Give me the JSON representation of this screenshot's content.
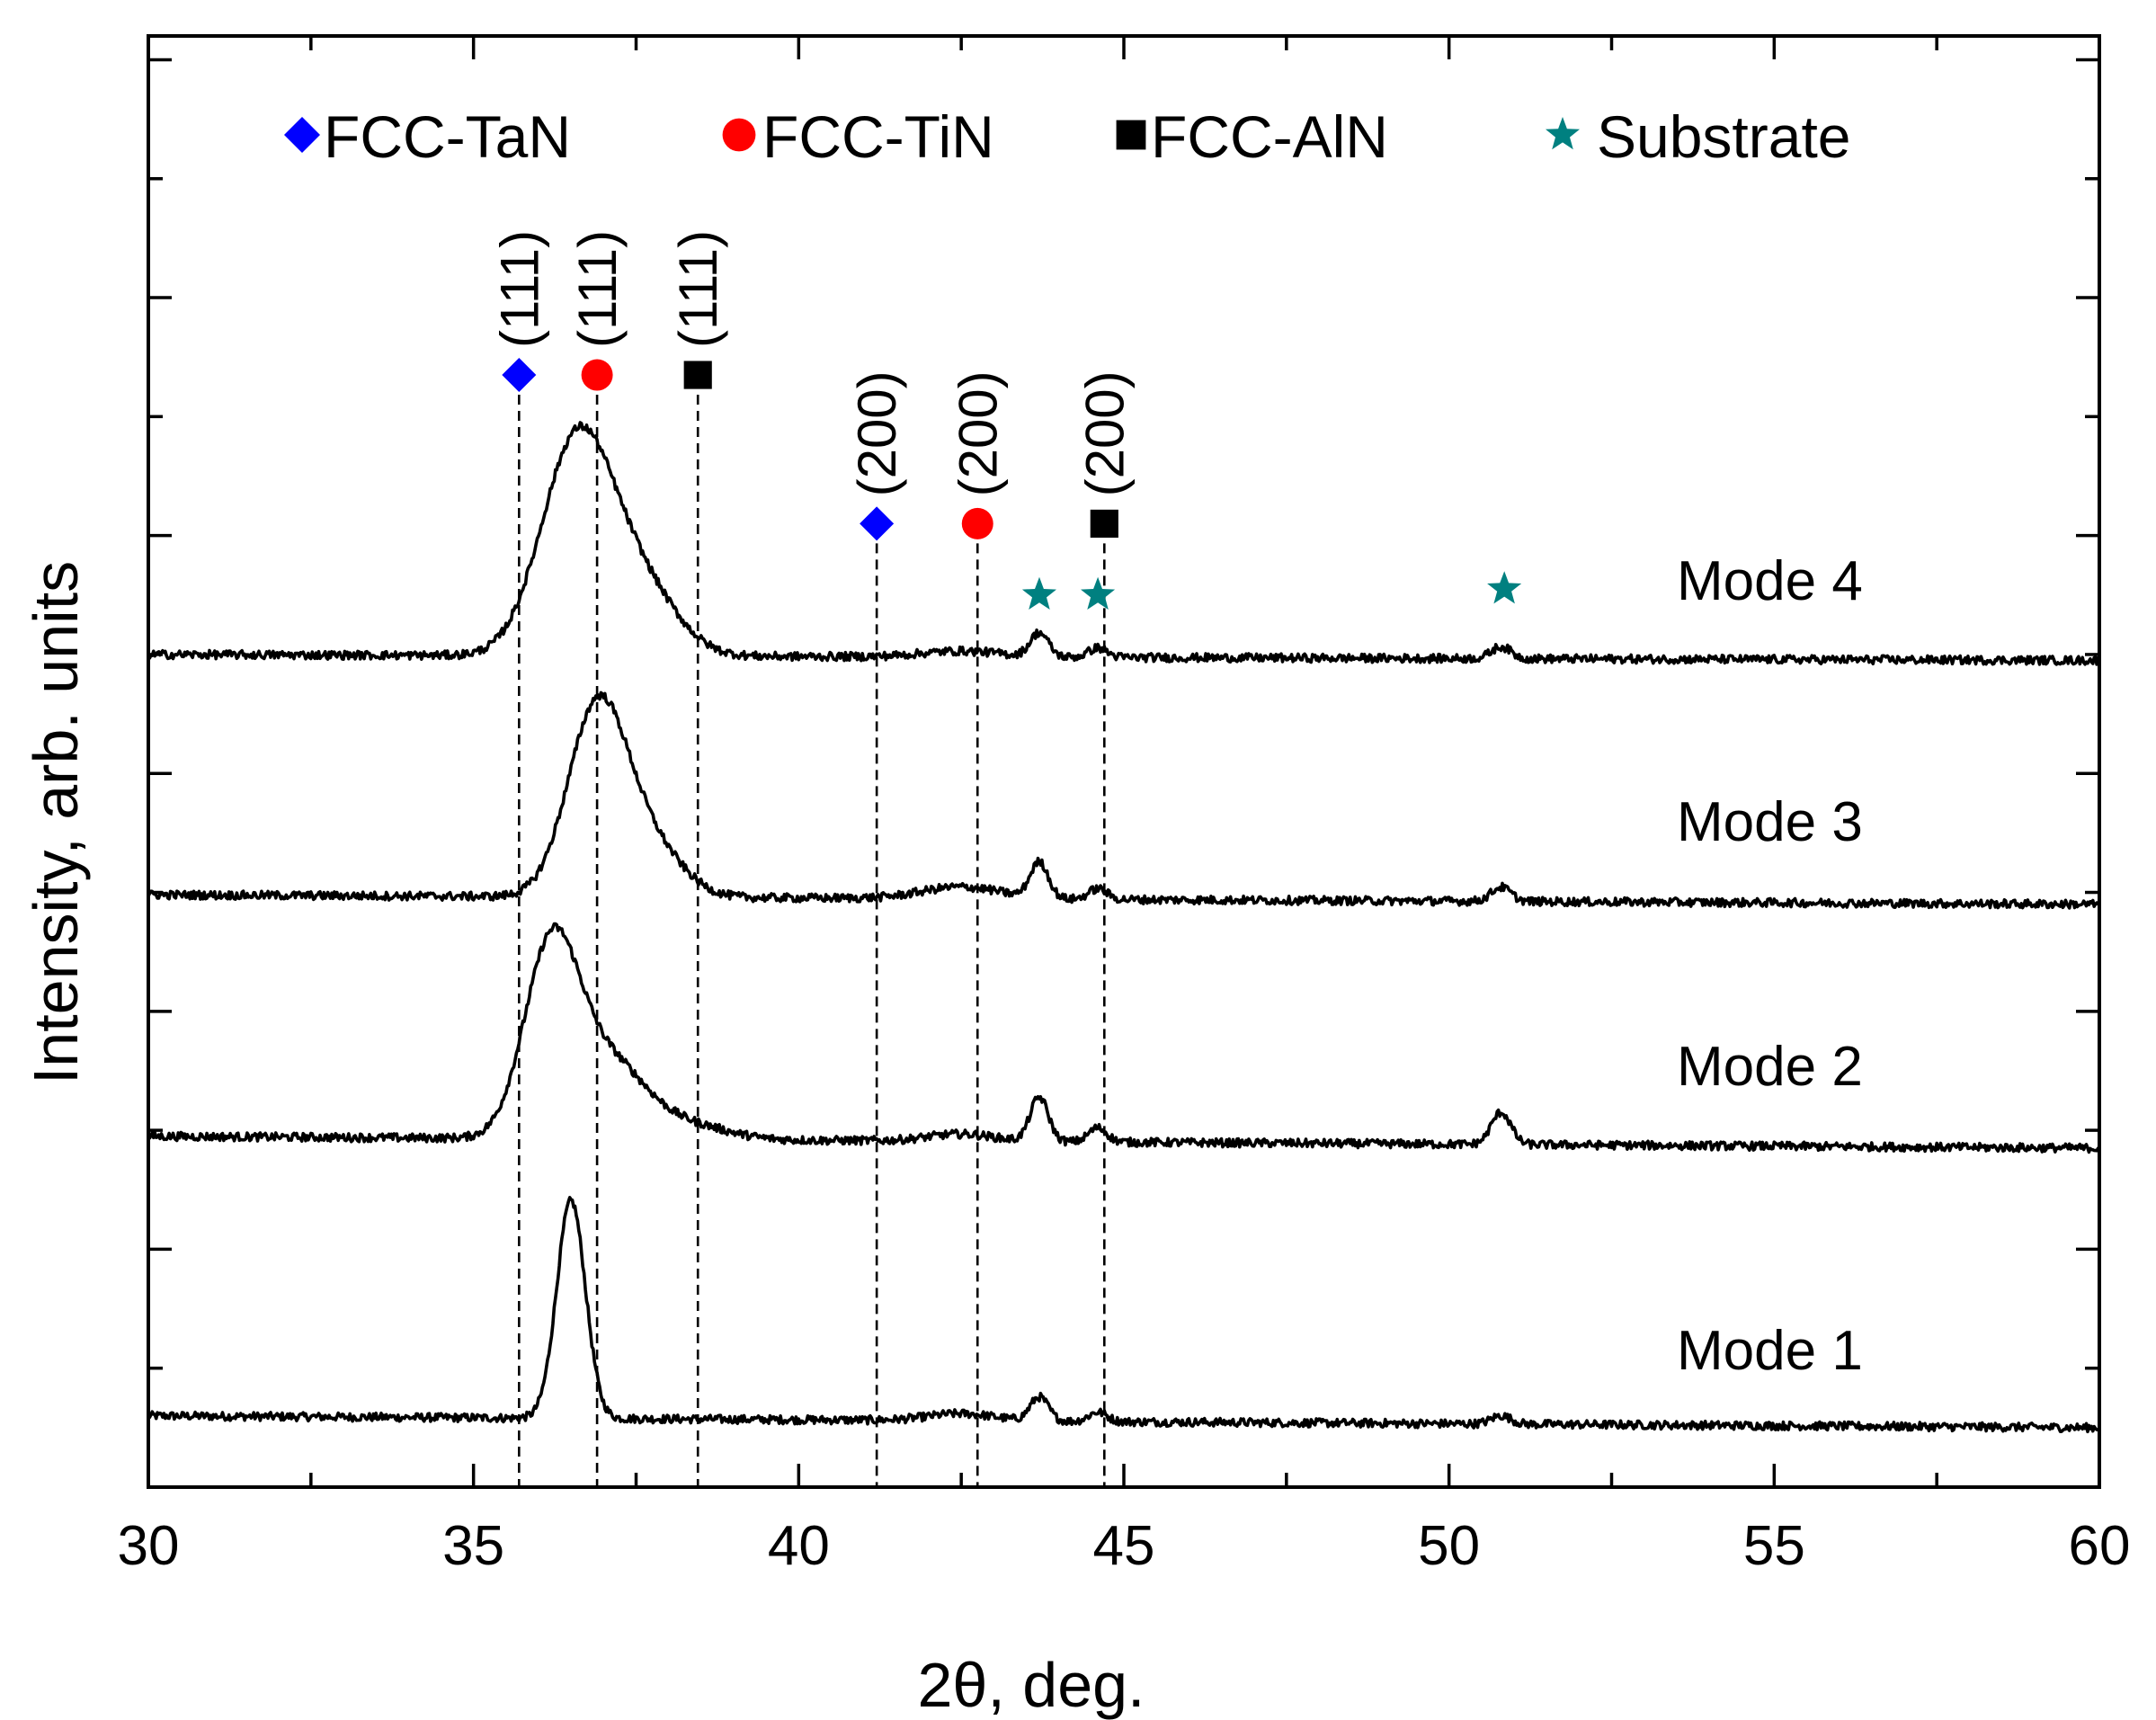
{
  "chart_data": {
    "type": "line",
    "title": "",
    "xlabel": "2θ, deg.",
    "ylabel": "Intensity, arb. units",
    "xlim": [
      30,
      60
    ],
    "ylim": [
      0,
      12.2
    ],
    "x_ticks": [
      30,
      35,
      40,
      45,
      50,
      55,
      60
    ],
    "y_tick_labels_shown": false,
    "grid": false,
    "legend": [
      {
        "name": "FCC-TaN",
        "marker": "diamond",
        "color": "#0000ff"
      },
      {
        "name": "FCC-TiN",
        "marker": "circle",
        "color": "#ff0000"
      },
      {
        "name": "FCC-AlN",
        "marker": "square",
        "color": "#000000"
      },
      {
        "name": "Substrate",
        "marker": "star",
        "color": "#008080"
      }
    ],
    "reference_peaks": [
      {
        "phase": "FCC-TaN",
        "hkl": "(111)",
        "two_theta": 35.7,
        "marker": "diamond",
        "color": "#0000ff",
        "marker_y": 9.35
      },
      {
        "phase": "FCC-TiN",
        "hkl": "(111)",
        "two_theta": 36.9,
        "marker": "circle",
        "color": "#ff0000",
        "marker_y": 9.35
      },
      {
        "phase": "FCC-AlN",
        "hkl": "(111)",
        "two_theta": 38.45,
        "marker": "square",
        "color": "#000000",
        "marker_y": 9.35
      },
      {
        "phase": "FCC-TaN",
        "hkl": "(200)",
        "two_theta": 41.2,
        "marker": "diamond",
        "color": "#0000ff",
        "marker_y": 8.1
      },
      {
        "phase": "FCC-TiN",
        "hkl": "(200)",
        "two_theta": 42.75,
        "marker": "circle",
        "color": "#ff0000",
        "marker_y": 8.1
      },
      {
        "phase": "FCC-AlN",
        "hkl": "(200)",
        "two_theta": 44.7,
        "marker": "square",
        "color": "#000000",
        "marker_y": 8.1
      }
    ],
    "substrate_markers": [
      {
        "two_theta": 43.7,
        "y": 7.5
      },
      {
        "two_theta": 44.6,
        "y": 7.5
      },
      {
        "two_theta": 50.85,
        "y": 7.55
      }
    ],
    "series": [
      {
        "name": "Mode 1",
        "baseline": 0.6,
        "slope": -0.1,
        "peaks": [
          {
            "center": 36.5,
            "height": 1.83,
            "width": 0.22
          },
          {
            "center": 42.5,
            "height": 0.06,
            "width": 0.5
          },
          {
            "center": 43.7,
            "height": 0.2,
            "width": 0.14
          },
          {
            "center": 44.6,
            "height": 0.08,
            "width": 0.14
          },
          {
            "center": 50.8,
            "height": 0.07,
            "width": 0.15
          }
        ]
      },
      {
        "name": "Mode 2",
        "baseline": 2.95,
        "slope": -0.1,
        "peaks": [
          {
            "center": 36.2,
            "height": 1.6,
            "width": 0.42
          },
          {
            "center": 37.1,
            "height": 0.62,
            "width": 0.55
          },
          {
            "center": 38.3,
            "height": 0.12,
            "width": 0.6
          },
          {
            "center": 42.5,
            "height": 0.06,
            "width": 0.5
          },
          {
            "center": 43.7,
            "height": 0.37,
            "width": 0.14
          },
          {
            "center": 44.6,
            "height": 0.12,
            "width": 0.14
          },
          {
            "center": 50.8,
            "height": 0.27,
            "width": 0.15
          }
        ]
      },
      {
        "name": "Mode 3",
        "baseline": 4.98,
        "slope": -0.08,
        "peaks": [
          {
            "center": 36.9,
            "height": 1.57,
            "width": 0.45
          },
          {
            "center": 37.7,
            "height": 0.42,
            "width": 0.5
          },
          {
            "center": 42.5,
            "height": 0.1,
            "width": 0.6
          },
          {
            "center": 43.7,
            "height": 0.3,
            "width": 0.14
          },
          {
            "center": 44.6,
            "height": 0.09,
            "width": 0.14
          },
          {
            "center": 50.8,
            "height": 0.12,
            "width": 0.15
          }
        ]
      },
      {
        "name": "Mode 4",
        "baseline": 7.0,
        "slope": -0.05,
        "peaks": [
          {
            "center": 36.6,
            "height": 1.82,
            "width": 0.55
          },
          {
            "center": 37.6,
            "height": 0.52,
            "width": 0.55
          },
          {
            "center": 42.5,
            "height": 0.05,
            "width": 0.6
          },
          {
            "center": 43.7,
            "height": 0.2,
            "width": 0.14
          },
          {
            "center": 44.6,
            "height": 0.08,
            "width": 0.14
          },
          {
            "center": 50.8,
            "height": 0.1,
            "width": 0.15
          }
        ]
      }
    ]
  }
}
